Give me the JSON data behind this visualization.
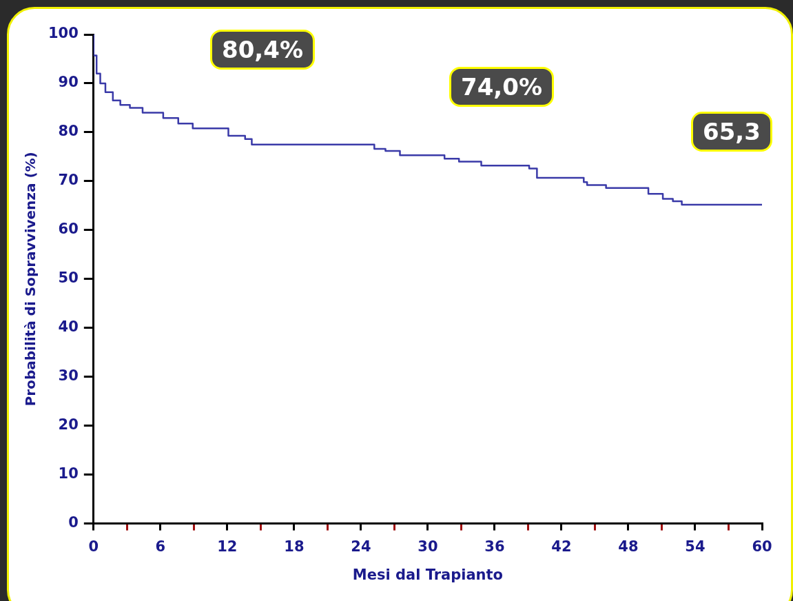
{
  "chart_data": {
    "type": "step",
    "xlabel": "Mesi dal Trapianto",
    "ylabel": "Probabilità di Sopravvivenza (%)",
    "x": [
      0,
      0.27,
      0.6,
      1.06,
      1.73,
      2.4,
      3.26,
      4.4,
      6.25,
      7.6,
      8.9,
      12.1,
      13.6,
      14.2,
      25.2,
      26.2,
      27.5,
      31.5,
      32.8,
      34.8,
      39.1,
      39.8,
      44,
      44.3,
      46,
      49.8,
      51.1,
      52,
      52.8,
      53.6,
      60
    ],
    "series": [
      {
        "color": "#3a3aa8",
        "values": [
          100,
          95.7,
          92,
          90,
          88.2,
          86.5,
          85.6,
          85,
          84,
          82.9,
          81.8,
          80.8,
          79.3,
          78.6,
          77.5,
          76.6,
          76.2,
          75.3,
          74.6,
          74,
          73.2,
          72.6,
          70.7,
          69.8,
          69.2,
          68.6,
          67.4,
          66.4,
          65.9,
          65.2,
          65.2
        ]
      }
    ],
    "xlim": [
      0,
      60
    ],
    "xticks": [
      0,
      {
        "value": 3,
        "label": null
      },
      6,
      {
        "value": 9,
        "label": null
      },
      12,
      {
        "value": 15,
        "label": null
      },
      18,
      {
        "value": 21,
        "label": null
      },
      24,
      {
        "value": 27,
        "label": null
      },
      30,
      {
        "value": 33,
        "label": null
      },
      36,
      {
        "value": 39,
        "label": null
      },
      42,
      {
        "value": 45,
        "label": null
      },
      48,
      {
        "value": 51,
        "label": null
      },
      54,
      {
        "value": 57,
        "label": null
      },
      60
    ],
    "ylim": [
      0,
      100
    ],
    "yticks": [
      0,
      10,
      20,
      30,
      40,
      50,
      60,
      70,
      80,
      90,
      100
    ],
    "grid": false,
    "legend": false,
    "marker": "none",
    "line_style": "solid",
    "annotations": [
      "80,4%",
      "74,0%",
      "65,3"
    ]
  }
}
